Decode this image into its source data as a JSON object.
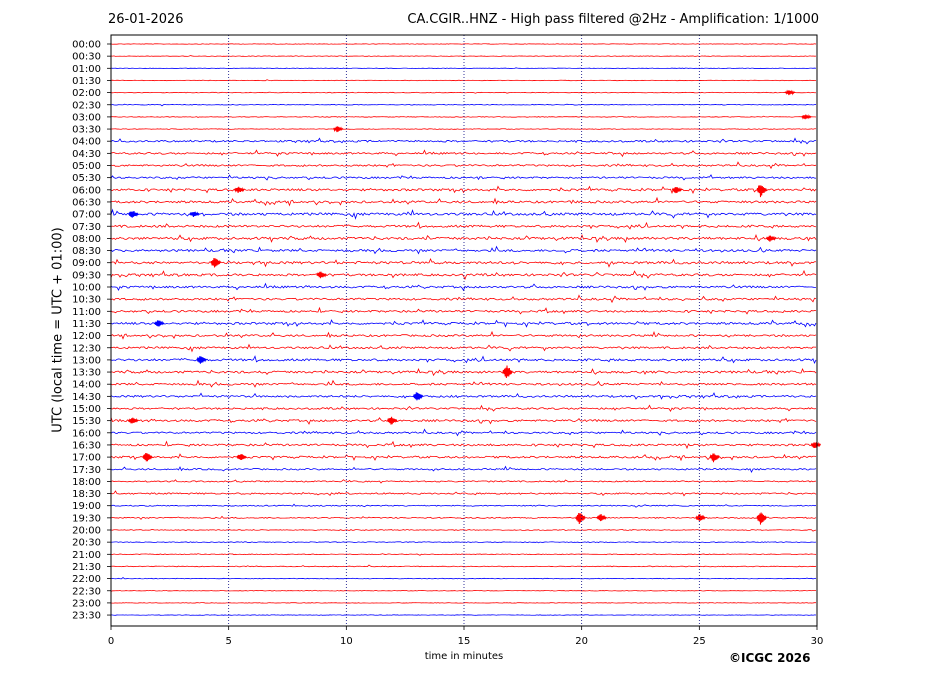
{
  "header": {
    "date": "26-01-2026",
    "title": "CA.CGIR..HNZ - High pass filtered @2Hz - Amplification: 1/1000"
  },
  "footer": {
    "copyright": "©ICGC 2026"
  },
  "colors": {
    "red": "#ff0000",
    "blue": "#0000ff",
    "frame": "#000000",
    "grid": "#000080"
  },
  "chart_data": {
    "type": "line",
    "title": "CA.CGIR..HNZ - High pass filtered @2Hz - Amplification: 1/1000",
    "xlabel": "time in minutes",
    "ylabel": "UTC (local time = UTC + 01:00)",
    "xlim": [
      0,
      30
    ],
    "x_ticks": [
      "0",
      "5",
      "10",
      "15",
      "20",
      "25",
      "30"
    ],
    "vertical_gridlines": [
      5,
      10,
      15,
      20,
      25
    ],
    "row_colors": [
      "red",
      "red",
      "blue"
    ],
    "rows": [
      {
        "label": "00:00",
        "activity": 0.05
      },
      {
        "label": "00:30",
        "activity": 0.05
      },
      {
        "label": "01:00",
        "activity": 0.05
      },
      {
        "label": "01:30",
        "activity": 0.05
      },
      {
        "label": "02:00",
        "activity": 0.1
      },
      {
        "label": "02:30",
        "activity": 0.1
      },
      {
        "label": "03:00",
        "activity": 0.1
      },
      {
        "label": "03:30",
        "activity": 0.1
      },
      {
        "label": "04:00",
        "activity": 0.6
      },
      {
        "label": "04:30",
        "activity": 0.6
      },
      {
        "label": "05:00",
        "activity": 0.6
      },
      {
        "label": "05:30",
        "activity": 0.6
      },
      {
        "label": "06:00",
        "activity": 0.8
      },
      {
        "label": "06:30",
        "activity": 0.8
      },
      {
        "label": "07:00",
        "activity": 0.9
      },
      {
        "label": "07:30",
        "activity": 0.8
      },
      {
        "label": "08:00",
        "activity": 0.9
      },
      {
        "label": "08:30",
        "activity": 0.8
      },
      {
        "label": "09:00",
        "activity": 0.9
      },
      {
        "label": "09:30",
        "activity": 0.8
      },
      {
        "label": "10:00",
        "activity": 0.7
      },
      {
        "label": "10:30",
        "activity": 0.7
      },
      {
        "label": "11:00",
        "activity": 0.7
      },
      {
        "label": "11:30",
        "activity": 0.8
      },
      {
        "label": "12:00",
        "activity": 0.7
      },
      {
        "label": "12:30",
        "activity": 0.7
      },
      {
        "label": "13:00",
        "activity": 0.8
      },
      {
        "label": "13:30",
        "activity": 0.8
      },
      {
        "label": "14:00",
        "activity": 0.7
      },
      {
        "label": "14:30",
        "activity": 0.7
      },
      {
        "label": "15:00",
        "activity": 0.6
      },
      {
        "label": "15:30",
        "activity": 0.7
      },
      {
        "label": "16:00",
        "activity": 0.6
      },
      {
        "label": "16:30",
        "activity": 0.7
      },
      {
        "label": "17:00",
        "activity": 0.7
      },
      {
        "label": "17:30",
        "activity": 0.5
      },
      {
        "label": "18:00",
        "activity": 0.4
      },
      {
        "label": "18:30",
        "activity": 0.5
      },
      {
        "label": "19:00",
        "activity": 0.3
      },
      {
        "label": "19:30",
        "activity": 0.3
      },
      {
        "label": "20:00",
        "activity": 0.2
      },
      {
        "label": "20:30",
        "activity": 0.15
      },
      {
        "label": "21:00",
        "activity": 0.15
      },
      {
        "label": "21:30",
        "activity": 0.15
      },
      {
        "label": "22:00",
        "activity": 0.1
      },
      {
        "label": "22:30",
        "activity": 0.05
      },
      {
        "label": "23:00",
        "activity": 0.05
      },
      {
        "label": "23:30",
        "activity": 0.05
      }
    ],
    "events": [
      {
        "row": "02:00",
        "minute": 28.8,
        "amp": 0.2
      },
      {
        "row": "03:00",
        "minute": 29.5,
        "amp": 0.2
      },
      {
        "row": "03:30",
        "minute": 9.6,
        "amp": 0.3
      },
      {
        "row": "06:00",
        "minute": 5.4,
        "amp": 0.3
      },
      {
        "row": "06:00",
        "minute": 24.0,
        "amp": 0.4
      },
      {
        "row": "06:00",
        "minute": 27.6,
        "amp": 1.0
      },
      {
        "row": "07:00",
        "minute": 0.9,
        "amp": 0.5
      },
      {
        "row": "07:00",
        "minute": 3.5,
        "amp": 0.3
      },
      {
        "row": "08:00",
        "minute": 28.0,
        "amp": 0.4
      },
      {
        "row": "09:00",
        "minute": 4.4,
        "amp": 0.8
      },
      {
        "row": "09:30",
        "minute": 8.9,
        "amp": 0.4
      },
      {
        "row": "11:30",
        "minute": 2.0,
        "amp": 0.4
      },
      {
        "row": "13:00",
        "minute": 3.8,
        "amp": 0.5
      },
      {
        "row": "13:30",
        "minute": 16.8,
        "amp": 1.0
      },
      {
        "row": "14:30",
        "minute": 13.0,
        "amp": 0.6
      },
      {
        "row": "15:30",
        "minute": 0.9,
        "amp": 0.4
      },
      {
        "row": "15:30",
        "minute": 11.9,
        "amp": 0.5
      },
      {
        "row": "16:30",
        "minute": 29.9,
        "amp": 0.4
      },
      {
        "row": "17:00",
        "minute": 1.5,
        "amp": 0.6
      },
      {
        "row": "17:00",
        "minute": 5.5,
        "amp": 0.4
      },
      {
        "row": "17:00",
        "minute": 25.6,
        "amp": 0.6
      },
      {
        "row": "19:30",
        "minute": 19.9,
        "amp": 0.9
      },
      {
        "row": "19:30",
        "minute": 20.8,
        "amp": 0.5
      },
      {
        "row": "19:30",
        "minute": 25.0,
        "amp": 0.5
      },
      {
        "row": "19:30",
        "minute": 27.6,
        "amp": 1.0
      }
    ]
  }
}
